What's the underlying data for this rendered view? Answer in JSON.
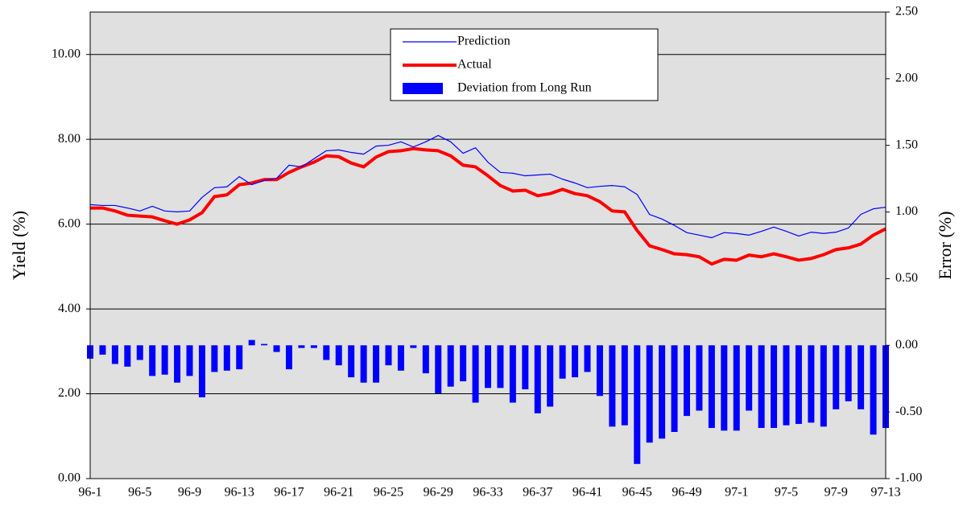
{
  "chart_data": {
    "type": "line-bar",
    "categories": [
      "96-1",
      null,
      null,
      null,
      "96-5",
      null,
      null,
      null,
      "96-9",
      null,
      null,
      null,
      "96-13",
      null,
      null,
      null,
      "96-17",
      null,
      null,
      null,
      "96-21",
      null,
      null,
      null,
      "96-25",
      null,
      null,
      null,
      "96-29",
      null,
      null,
      null,
      "96-33",
      null,
      null,
      null,
      "96-37",
      null,
      null,
      null,
      "96-41",
      null,
      null,
      null,
      "96-45",
      null,
      null,
      null,
      "96-49",
      null,
      null,
      null,
      "97-1",
      null,
      null,
      null,
      "97-5",
      null,
      null,
      null,
      "97-9",
      null,
      null,
      null,
      "97-13"
    ],
    "series": [
      {
        "name": "Prediction",
        "type": "line",
        "color": "#0000ff",
        "values": [
          6.46,
          6.44,
          6.44,
          6.38,
          6.31,
          6.42,
          6.31,
          6.29,
          6.31,
          6.63,
          6.86,
          6.88,
          7.12,
          6.93,
          7.03,
          7.08,
          7.39,
          7.35,
          7.54,
          7.73,
          7.75,
          7.69,
          7.65,
          7.84,
          7.86,
          7.94,
          7.82,
          7.94,
          8.09,
          7.94,
          7.67,
          7.8,
          7.46,
          7.22,
          7.2,
          7.14,
          7.16,
          7.18,
          7.06,
          6.97,
          6.86,
          6.89,
          6.91,
          6.88,
          6.7,
          6.23,
          6.12,
          5.97,
          5.8,
          5.74,
          5.68,
          5.8,
          5.78,
          5.74,
          5.83,
          5.93,
          5.83,
          5.72,
          5.81,
          5.78,
          5.81,
          5.91,
          6.23,
          6.36,
          6.4
        ]
      },
      {
        "name": "Actual",
        "type": "line",
        "color": "#ff0000",
        "values": [
          6.38,
          6.38,
          6.31,
          6.21,
          6.19,
          6.17,
          6.08,
          6.0,
          6.1,
          6.27,
          6.65,
          6.69,
          6.93,
          6.97,
          7.05,
          7.05,
          7.22,
          7.35,
          7.46,
          7.61,
          7.59,
          7.44,
          7.35,
          7.58,
          7.71,
          7.73,
          7.78,
          7.75,
          7.73,
          7.61,
          7.39,
          7.35,
          7.14,
          6.91,
          6.78,
          6.8,
          6.67,
          6.72,
          6.82,
          6.72,
          6.67,
          6.53,
          6.31,
          6.29,
          5.85,
          5.49,
          5.4,
          5.3,
          5.28,
          5.23,
          5.06,
          5.17,
          5.15,
          5.27,
          5.23,
          5.3,
          5.23,
          5.15,
          5.19,
          5.28,
          5.4,
          5.44,
          5.53,
          5.74,
          5.89
        ]
      },
      {
        "name": "Deviation from Long Run",
        "type": "bar",
        "axis": "y2",
        "color": "#0000ff",
        "values": [
          -0.1,
          -0.07,
          -0.14,
          -0.16,
          -0.11,
          -0.23,
          -0.22,
          -0.28,
          -0.23,
          -0.39,
          -0.2,
          -0.19,
          -0.18,
          0.04,
          0.01,
          -0.05,
          -0.18,
          -0.02,
          -0.02,
          -0.11,
          -0.15,
          -0.24,
          -0.28,
          -0.28,
          -0.15,
          -0.19,
          -0.02,
          -0.21,
          -0.36,
          -0.31,
          -0.27,
          -0.43,
          -0.32,
          -0.32,
          -0.43,
          -0.33,
          -0.51,
          -0.46,
          -0.25,
          -0.24,
          -0.2,
          -0.38,
          -0.61,
          -0.6,
          -0.89,
          -0.73,
          -0.7,
          -0.65,
          -0.53,
          -0.49,
          -0.62,
          -0.64,
          -0.64,
          -0.49,
          -0.62,
          -0.62,
          -0.6,
          -0.59,
          -0.58,
          -0.61,
          -0.48,
          -0.42,
          -0.48,
          -0.67,
          -0.62
        ]
      }
    ],
    "y_label": "Yield (%)",
    "y2_label": "Error (%)",
    "ylim": [
      0,
      11
    ],
    "yticks": [
      {
        "value": 0,
        "label": "0.00"
      },
      {
        "value": 2,
        "label": "2.00"
      },
      {
        "value": 4,
        "label": "4.00"
      },
      {
        "value": 6,
        "label": "6.00"
      },
      {
        "value": 8,
        "label": "8.00"
      },
      {
        "value": 10,
        "label": "10.00"
      }
    ],
    "y2lim": [
      -1,
      2.5
    ],
    "y2ticks": [
      {
        "value": -1,
        "label": "-1.00"
      },
      {
        "value": -0.5,
        "label": "-0.50"
      },
      {
        "value": 0,
        "label": "0.00"
      },
      {
        "value": 0.5,
        "label": "0.50"
      },
      {
        "value": 1,
        "label": "1.00"
      },
      {
        "value": 1.5,
        "label": "1.50"
      },
      {
        "value": 2,
        "label": "2.00"
      },
      {
        "value": 2.5,
        "label": "2.50"
      }
    ],
    "grid": true,
    "legend": "top",
    "background": "#e0e0e0"
  }
}
